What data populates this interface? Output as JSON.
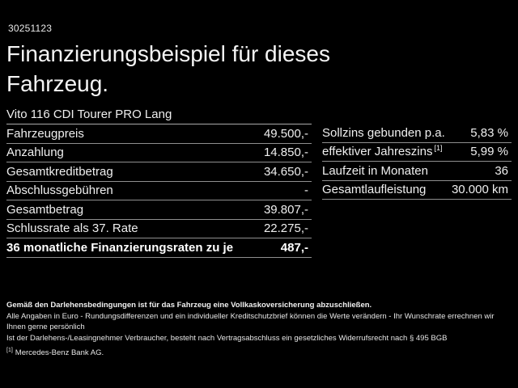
{
  "colors": {
    "background": "#000000",
    "text": "#efefef",
    "divider": "#8f8f8f"
  },
  "header": {
    "code": "30251123",
    "title": "Finanzierungsbeispiel für dieses Fahrzeug."
  },
  "vehicle_model": "Vito 116 CDI Tourer PRO Lang",
  "finance_table": {
    "rows": [
      {
        "label": "Fahrzeugpreis",
        "value": "49.500,-"
      },
      {
        "label": "Anzahlung",
        "value": "14.850,-"
      },
      {
        "label": "Gesamtkreditbetrag",
        "value": "34.650,-"
      },
      {
        "label": "Abschlussgebühren",
        "value": "-"
      },
      {
        "label": "Gesamtbetrag",
        "value": "39.807,-"
      },
      {
        "label": "Schlussrate als 37. Rate",
        "value": "22.275,-"
      },
      {
        "label": "36 monatliche Finanzierungsraten zu je",
        "value": "487,-"
      }
    ]
  },
  "conditions_table": {
    "rows": [
      {
        "label": "Sollzins gebunden p.a.",
        "value": "5,83 %"
      },
      {
        "label": "effektiver Jahreszins",
        "footnote": "[1]",
        "value": "5,99 %"
      },
      {
        "label": "Laufzeit in Monaten",
        "value": "36"
      },
      {
        "label": "Gesamtlaufleistung",
        "value": "30.000 km"
      }
    ]
  },
  "footer": {
    "insurance_note": "Gemäß den Darlehensbedingungen ist für das Fahrzeug eine Vollkaskoversicherung abzuschließen.",
    "disclaimer_line_1": "Alle Angaben in Euro - Rundungsdifferenzen und ein individueller Kreditschutzbrief können die Werte verändern - Ihr Wunschrate errechnen wir Ihnen gerne persönlich",
    "disclaimer_line_2": "Ist der Darlehens-/Leasingnehmer Verbraucher, besteht nach Vertragsabschluss ein gesetzliches Widerrufsrecht nach § 495 BGB",
    "footnote_marker": "[1]",
    "footnote_text": "Mercedes-Benz Bank AG."
  }
}
